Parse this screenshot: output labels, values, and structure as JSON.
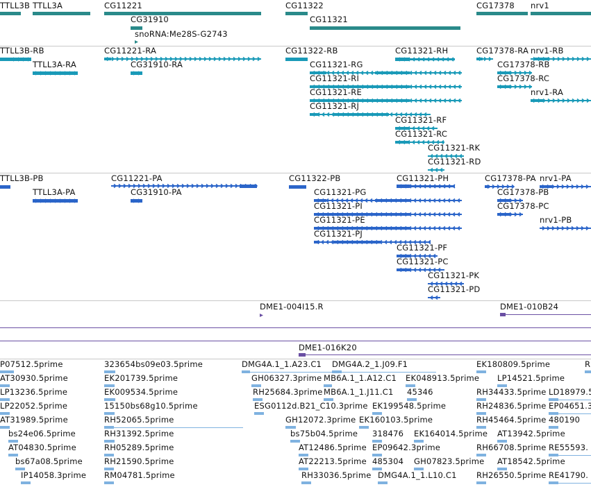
{
  "colors": {
    "gene": "#2a8a8a",
    "transcript_rna": "#1a9ab8",
    "transcript_protein": "#2b65c9",
    "clone": "#6a4fa3",
    "est": "#7fb2e0",
    "divider": "#c8c8c8"
  },
  "tracks": {
    "genes": {
      "items": [
        {
          "label": "TTLL3B"
        },
        {
          "label": "TTLL3A"
        },
        {
          "label": "CG11221"
        },
        {
          "label": "CG31910"
        },
        {
          "label": "snoRNA:Me28S-G2743"
        },
        {
          "label": "CG11322"
        },
        {
          "label": "CG11321"
        },
        {
          "label": "CG17378"
        },
        {
          "label": "nrv1"
        }
      ]
    },
    "transcripts": {
      "items": [
        {
          "label": "TTLL3B-RB"
        },
        {
          "label": "TTLL3A-RA"
        },
        {
          "label": "CG11221-RA"
        },
        {
          "label": "CG31910-RA"
        },
        {
          "label": "CG11322-RB"
        },
        {
          "label": "CG11321-RH"
        },
        {
          "label": "CG11321-RG"
        },
        {
          "label": "CG11321-RI"
        },
        {
          "label": "CG11321-RE"
        },
        {
          "label": "CG11321-RJ"
        },
        {
          "label": "CG11321-RF"
        },
        {
          "label": "CG11321-RC"
        },
        {
          "label": "CG11321-RK"
        },
        {
          "label": "CG11321-RD"
        },
        {
          "label": "CG17378-RA"
        },
        {
          "label": "nrv1-RB"
        },
        {
          "label": "CG17378-RB"
        },
        {
          "label": "CG17378-RC"
        },
        {
          "label": "nrv1-RA"
        }
      ]
    },
    "proteins": {
      "items": [
        {
          "label": "TTLL3B-PB"
        },
        {
          "label": "TTLL3A-PA"
        },
        {
          "label": "CG11221-PA"
        },
        {
          "label": "CG31910-PA"
        },
        {
          "label": "CG11322-PB"
        },
        {
          "label": "CG11321-PH"
        },
        {
          "label": "CG11321-PG"
        },
        {
          "label": "CG11321-PI"
        },
        {
          "label": "CG11321-PE"
        },
        {
          "label": "CG11321-PJ"
        },
        {
          "label": "CG11321-PF"
        },
        {
          "label": "CG11321-PC"
        },
        {
          "label": "CG11321-PK"
        },
        {
          "label": "CG11321-PD"
        },
        {
          "label": "CG17378-PA"
        },
        {
          "label": "nrv1-PA"
        },
        {
          "label": "CG17378-PB"
        },
        {
          "label": "CG17378-PC"
        },
        {
          "label": "nrv1-PB"
        }
      ]
    },
    "clones": {
      "items": [
        {
          "label": "DME1-004I15.R"
        },
        {
          "label": "DME1-010B24"
        },
        {
          "label": "DME1-016K20"
        }
      ]
    },
    "ests": {
      "items": [
        {
          "label": "P07512.5prime"
        },
        {
          "label": "323654bs09e03.5prime"
        },
        {
          "label": "DMG4A.1_1.A23.C1"
        },
        {
          "label": "DMG4A.2_1.J09.F1"
        },
        {
          "label": "EK180809.5prime"
        },
        {
          "label": "R"
        },
        {
          "label": "AT30930.5prime"
        },
        {
          "label": "EK201739.5prime"
        },
        {
          "label": "GH06327.3prime"
        },
        {
          "label": "MB6A.1_1.A12.C1"
        },
        {
          "label": "EK048913.5prime"
        },
        {
          "label": "LP14521.5prime"
        },
        {
          "label": "LP13236.5prime"
        },
        {
          "label": "EK009534.5prime"
        },
        {
          "label": "RH25684.3prime"
        },
        {
          "label": "MB6A.1_1.J11.C1"
        },
        {
          "label": "45346"
        },
        {
          "label": "RH34433.5prime"
        },
        {
          "label": "LD18979.5"
        },
        {
          "label": "LP22052.5prime"
        },
        {
          "label": "15150bs68g10.5prime"
        },
        {
          "label": "ESG0112d.B21_C10.3prime"
        },
        {
          "label": "EK199548.5prime"
        },
        {
          "label": "RH24836.5prime"
        },
        {
          "label": "EP04651.3"
        },
        {
          "label": "AT31989.5prime"
        },
        {
          "label": "RH52065.5prime"
        },
        {
          "label": "GH12072.3prime"
        },
        {
          "label": "EK160103.5prime"
        },
        {
          "label": "RH45464.5prime"
        },
        {
          "label": "480190"
        },
        {
          "label": "bs24e06.5prime"
        },
        {
          "label": "RH31392.5prime"
        },
        {
          "label": "bs75b04.5prime"
        },
        {
          "label": "318476"
        },
        {
          "label": "EK164014.5prime"
        },
        {
          "label": "AT13942.5prime"
        },
        {
          "label": "AT04830.5prime"
        },
        {
          "label": "RH05289.5prime"
        },
        {
          "label": "AT12486.5prime"
        },
        {
          "label": "EP09642.3prime"
        },
        {
          "label": "RH66708.5prime"
        },
        {
          "label": "RE55593."
        },
        {
          "label": "bs67a08.5prime"
        },
        {
          "label": "RH21590.5prime"
        },
        {
          "label": "AT22213.5prime"
        },
        {
          "label": "485304"
        },
        {
          "label": "GH07823.5prime"
        },
        {
          "label": "AT18542.5prime"
        },
        {
          "label": "IP14058.3prime"
        },
        {
          "label": "RM04781.5prime"
        },
        {
          "label": "RH33036.5prime"
        },
        {
          "label": "DMG4A.1_1.L10.C1"
        },
        {
          "label": "RH26550.5prime"
        },
        {
          "label": "RE41790."
        }
      ]
    }
  }
}
